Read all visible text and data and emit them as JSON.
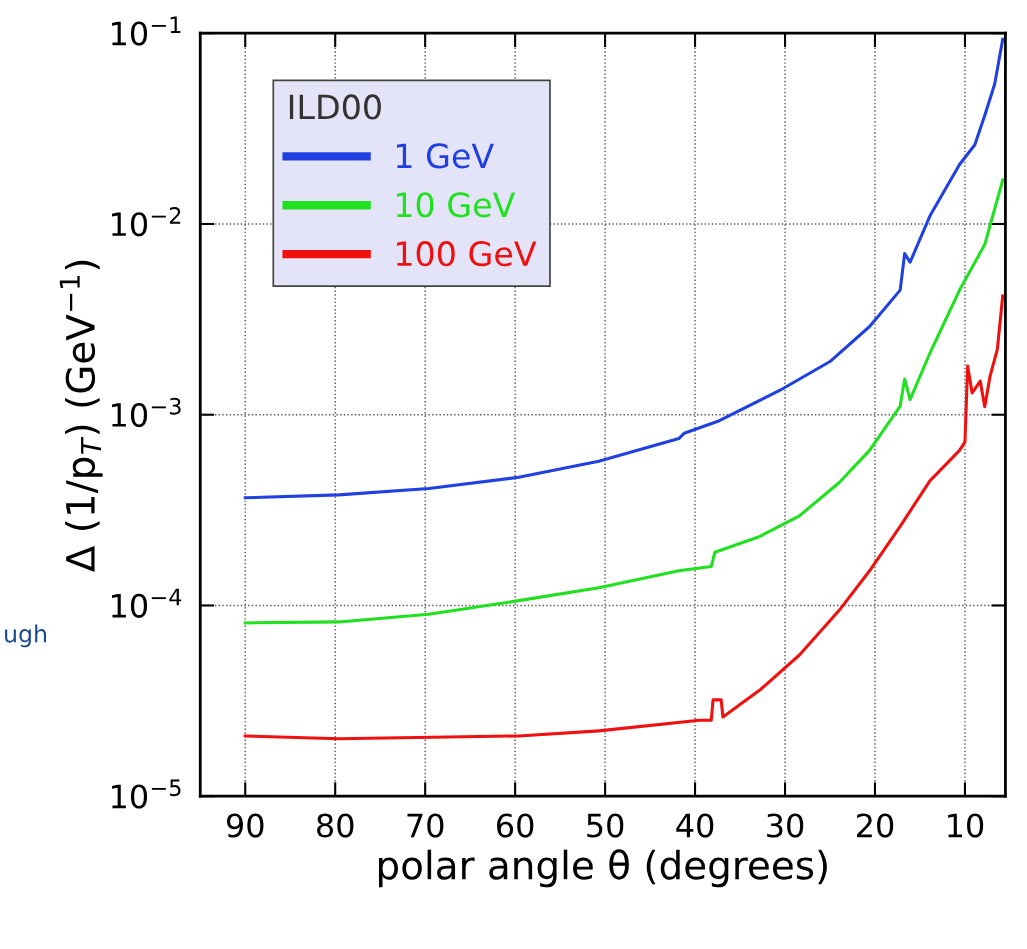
{
  "chart_data": {
    "type": "line",
    "xlabel": "polar angle θ (degrees)",
    "ylabel": "Δ (1/p$_{T}$) (GeV$^{−1}$)",
    "legend_title": "ILD00",
    "legend": "top left",
    "grid": true,
    "log": "y",
    "xlim": [
      95,
      5.5
    ],
    "xticks": [
      90,
      80,
      70,
      60,
      50,
      40,
      30,
      20,
      10
    ],
    "ylim": [
      1e-05,
      0.1
    ],
    "yticks": [
      {
        "value": 1e-05,
        "label": "10$^{−5}$"
      },
      {
        "value": 0.0001,
        "label": "10$^{−4}$"
      },
      {
        "value": 0.001,
        "label": "10$^{−3}$"
      },
      {
        "value": 0.01,
        "label": "10$^{−2}$"
      },
      {
        "value": 0.1,
        "label": "10$^{−1}$"
      }
    ],
    "annotations": [
      "ugh"
    ],
    "series": [
      {
        "name": "1 GeV",
        "color": "#2040e0",
        "x": [
          90,
          79.6,
          69.6,
          59.6,
          50.7,
          41.8,
          41.2,
          37.3,
          30.6,
          25,
          20.6,
          17.2,
          16.7,
          16.1,
          13.9,
          10.6,
          8.9,
          7.8,
          6.7,
          5.8
        ],
        "values": [
          0.000367,
          0.00038,
          0.00041,
          0.00047,
          0.00057,
          0.00075,
          0.0008,
          0.00093,
          0.00134,
          0.0019,
          0.0029,
          0.0045,
          0.007,
          0.0063,
          0.011,
          0.0205,
          0.026,
          0.037,
          0.054,
          0.093
        ]
      },
      {
        "name": "10 GeV",
        "color": "#20e020",
        "x": [
          90,
          79.6,
          69.6,
          59.6,
          50.7,
          41.8,
          38.2,
          37.8,
          32.8,
          28.4,
          24,
          20.6,
          17.2,
          16.7,
          16.1,
          13.9,
          10.6,
          7.8,
          5.8
        ],
        "values": [
          8.1e-05,
          8.2e-05,
          9e-05,
          0.000106,
          0.000124,
          0.000152,
          0.00016,
          0.00019,
          0.00023,
          0.000295,
          0.00044,
          0.00065,
          0.00111,
          0.00154,
          0.0012,
          0.0021,
          0.0045,
          0.0078,
          0.017
        ]
      },
      {
        "name": "100 GeV",
        "color": "#f01010",
        "x": [
          90,
          79.6,
          59.6,
          50.7,
          39.5,
          38.2,
          38,
          37.1,
          36.9,
          32.8,
          28.4,
          24,
          20.6,
          17.2,
          13.9,
          10.6,
          10,
          9.7,
          9.2,
          8.3,
          7.8,
          7.2,
          6.4,
          5.8
        ],
        "values": [
          2.07e-05,
          2e-05,
          2.07e-05,
          2.2e-05,
          2.5e-05,
          2.5e-05,
          3.2e-05,
          3.2e-05,
          2.6e-05,
          3.6e-05,
          5.5e-05,
          9.4e-05,
          0.000152,
          0.00026,
          0.00045,
          0.00065,
          0.00072,
          0.0018,
          0.0013,
          0.0015,
          0.0011,
          0.0016,
          0.0022,
          0.0042
        ]
      }
    ]
  }
}
